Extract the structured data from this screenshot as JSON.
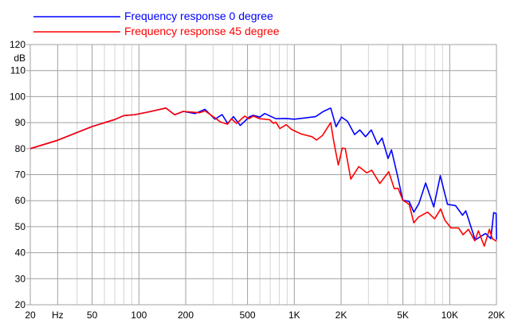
{
  "chart_data": {
    "type": "line",
    "title": "",
    "xlabel": "Hz",
    "ylabel": "dB",
    "x_scale": "log",
    "xlim": [
      20,
      20000
    ],
    "ylim": [
      20,
      120
    ],
    "grid": true,
    "legend_placement": "top-left",
    "y_ticks": [
      20,
      30,
      40,
      50,
      60,
      70,
      80,
      90,
      100,
      110,
      120
    ],
    "x_ticks": [
      {
        "value": 20,
        "label": "20"
      },
      {
        "value": 30,
        "label": "Hz"
      },
      {
        "value": 50,
        "label": "50"
      },
      {
        "value": 100,
        "label": "100"
      },
      {
        "value": 200,
        "label": "200"
      },
      {
        "value": 500,
        "label": "500"
      },
      {
        "value": 1000,
        "label": "1K"
      },
      {
        "value": 2000,
        "label": "2K"
      },
      {
        "value": 5000,
        "label": "5K"
      },
      {
        "value": 10000,
        "label": "10K"
      },
      {
        "value": 20000,
        "label": "20K"
      }
    ],
    "series": [
      {
        "name": "Frequency response 0 degree",
        "color": "#0000ff",
        "points": [
          [
            20,
            80
          ],
          [
            30,
            83.2
          ],
          [
            50,
            88.5
          ],
          [
            70,
            91.2
          ],
          [
            80,
            92.7
          ],
          [
            95,
            93.1
          ],
          [
            120,
            94.3
          ],
          [
            149,
            95.6
          ],
          [
            170,
            93
          ],
          [
            193,
            94.3
          ],
          [
            230,
            93.5
          ],
          [
            266,
            95.1
          ],
          [
            309,
            91.3
          ],
          [
            343,
            93.1
          ],
          [
            372,
            89.7
          ],
          [
            406,
            92.3
          ],
          [
            449,
            88.9
          ],
          [
            516,
            92.3
          ],
          [
            545,
            92.8
          ],
          [
            600,
            92.1
          ],
          [
            645,
            93.5
          ],
          [
            760,
            91.5
          ],
          [
            888,
            91.6
          ],
          [
            1000,
            91.3
          ],
          [
            1370,
            92.3
          ],
          [
            1540,
            94.3
          ],
          [
            1715,
            95.6
          ],
          [
            1857,
            88.4
          ],
          [
            2014,
            92.1
          ],
          [
            2200,
            90.5
          ],
          [
            2445,
            85.4
          ],
          [
            2640,
            87.2
          ],
          [
            2875,
            84.6
          ],
          [
            3130,
            87.2
          ],
          [
            3440,
            81.6
          ],
          [
            3670,
            84.1
          ],
          [
            4010,
            76.2
          ],
          [
            4220,
            79.5
          ],
          [
            4600,
            70
          ],
          [
            4990,
            60.2
          ],
          [
            5480,
            59.7
          ],
          [
            5880,
            55.6
          ],
          [
            6340,
            58.9
          ],
          [
            7000,
            66.8
          ],
          [
            7900,
            57.6
          ],
          [
            8700,
            69.6
          ],
          [
            9670,
            58.6
          ],
          [
            10900,
            58.1
          ],
          [
            12100,
            54.4
          ],
          [
            12700,
            56.1
          ],
          [
            14600,
            44.9
          ],
          [
            17000,
            47.4
          ],
          [
            18400,
            45.4
          ],
          [
            19200,
            55.4
          ],
          [
            19900,
            55.1
          ],
          [
            20000,
            45
          ]
        ]
      },
      {
        "name": "Frequency response 45 degree",
        "color": "#ff0000",
        "points": [
          [
            20,
            80
          ],
          [
            30,
            83.2
          ],
          [
            50,
            88.5
          ],
          [
            70,
            91.2
          ],
          [
            80,
            92.7
          ],
          [
            95,
            93.1
          ],
          [
            120,
            94.3
          ],
          [
            149,
            95.6
          ],
          [
            170,
            93
          ],
          [
            193,
            94.3
          ],
          [
            245,
            93.8
          ],
          [
            266,
            94.5
          ],
          [
            309,
            91.8
          ],
          [
            335,
            90.2
          ],
          [
            372,
            89.4
          ],
          [
            394,
            91.5
          ],
          [
            425,
            89.7
          ],
          [
            480,
            92.5
          ],
          [
            510,
            91.5
          ],
          [
            545,
            92.5
          ],
          [
            600,
            91.5
          ],
          [
            695,
            91.1
          ],
          [
            735,
            89.7
          ],
          [
            760,
            90.2
          ],
          [
            808,
            87.7
          ],
          [
            888,
            89.2
          ],
          [
            960,
            87.4
          ],
          [
            1110,
            85.6
          ],
          [
            1300,
            84.6
          ],
          [
            1390,
            83.3
          ],
          [
            1520,
            85.1
          ],
          [
            1715,
            90
          ],
          [
            1790,
            83.1
          ],
          [
            1920,
            73.7
          ],
          [
            2035,
            80.2
          ],
          [
            2130,
            80
          ],
          [
            2310,
            68.3
          ],
          [
            2600,
            73.1
          ],
          [
            2930,
            70.7
          ],
          [
            3150,
            71.7
          ],
          [
            3550,
            66.6
          ],
          [
            4050,
            71.1
          ],
          [
            4400,
            64.6
          ],
          [
            4650,
            64.8
          ],
          [
            4990,
            60.2
          ],
          [
            5480,
            58.6
          ],
          [
            5880,
            51.5
          ],
          [
            6300,
            53.7
          ],
          [
            7200,
            55.6
          ],
          [
            8000,
            53
          ],
          [
            8750,
            56.8
          ],
          [
            9300,
            52.5
          ],
          [
            10200,
            49.5
          ],
          [
            11400,
            49.5
          ],
          [
            12200,
            46.9
          ],
          [
            13200,
            49
          ],
          [
            14500,
            44.6
          ],
          [
            15300,
            48.4
          ],
          [
            16700,
            42.5
          ],
          [
            18000,
            49
          ],
          [
            18800,
            45.4
          ],
          [
            20000,
            44.4
          ]
        ]
      }
    ]
  }
}
